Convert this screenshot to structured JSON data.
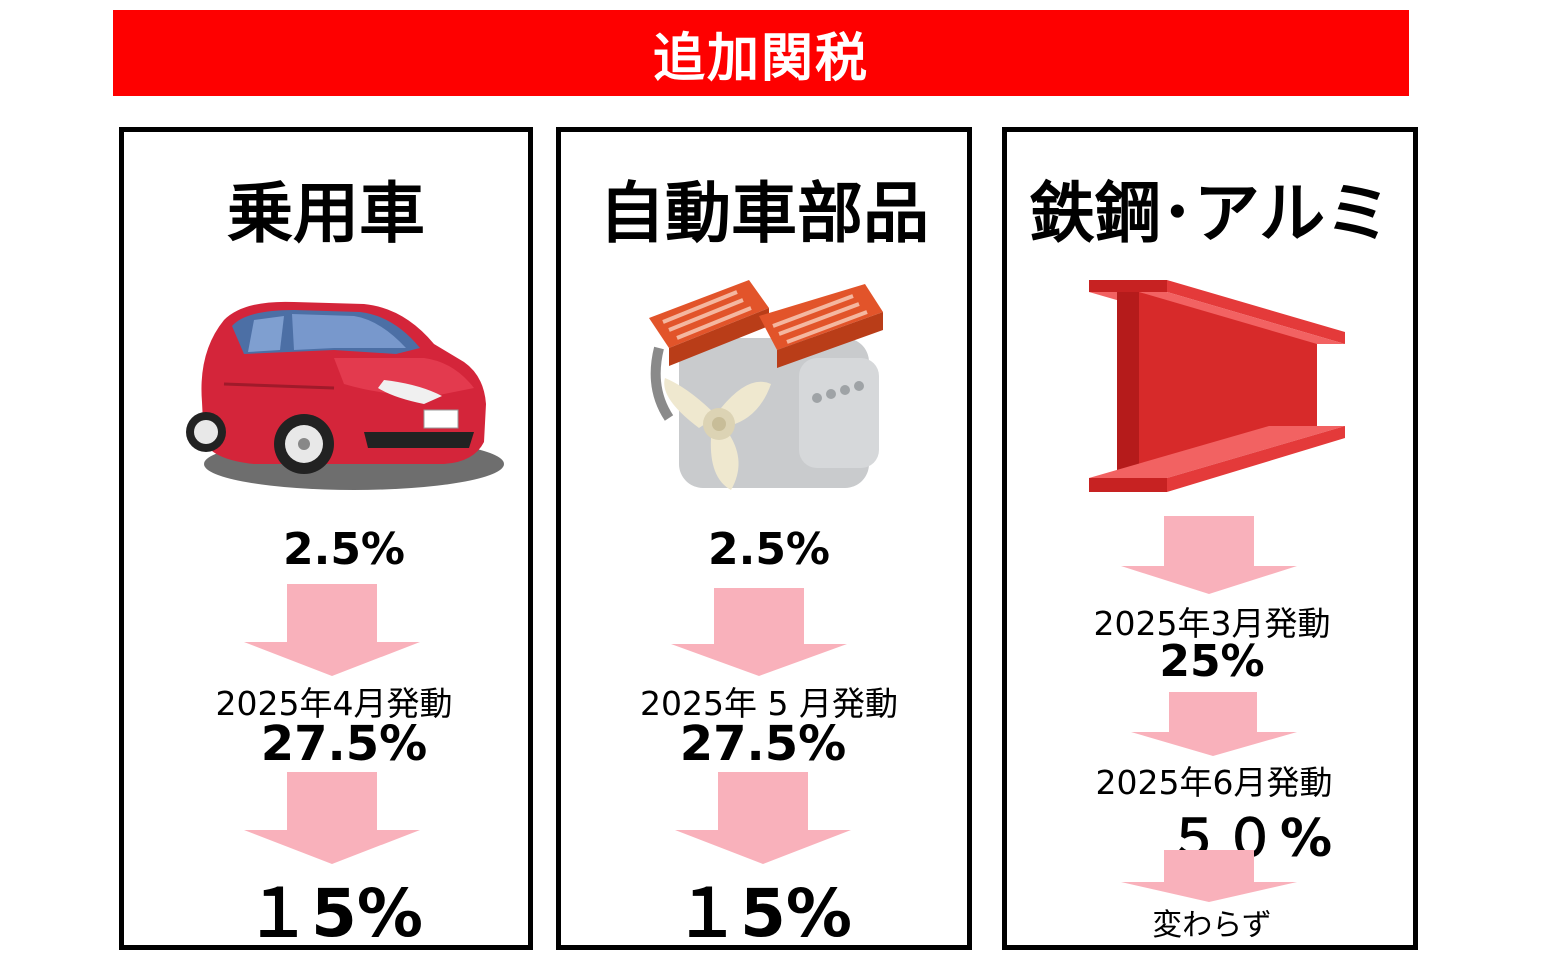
{
  "header": {
    "title": "追加関税"
  },
  "colors": {
    "banner": "#fe0000",
    "arrow": "#f9b1bb",
    "frame": "#000000"
  },
  "panels": [
    {
      "title": "乗用車",
      "icon": "red-car-icon",
      "initial_rate": "2.5%",
      "steps": [
        {
          "when": "2025年4月発動",
          "rate": "27.5%"
        },
        {
          "when": "",
          "rate": "１5%"
        }
      ]
    },
    {
      "title": "自動車部品",
      "icon": "engine-icon",
      "initial_rate": "2.5%",
      "steps": [
        {
          "when": "2025年 5 月発動",
          "rate": "27.5%"
        },
        {
          "when": "",
          "rate": "１5%"
        }
      ]
    },
    {
      "title": "鉄鋼･アルミ",
      "icon": "steel-h-beam-icon",
      "steps": [
        {
          "when": "2025年3月発動",
          "rate": "25%"
        },
        {
          "when": "2025年6月発動",
          "rate": "５０%"
        }
      ],
      "note": "変わらず"
    }
  ]
}
